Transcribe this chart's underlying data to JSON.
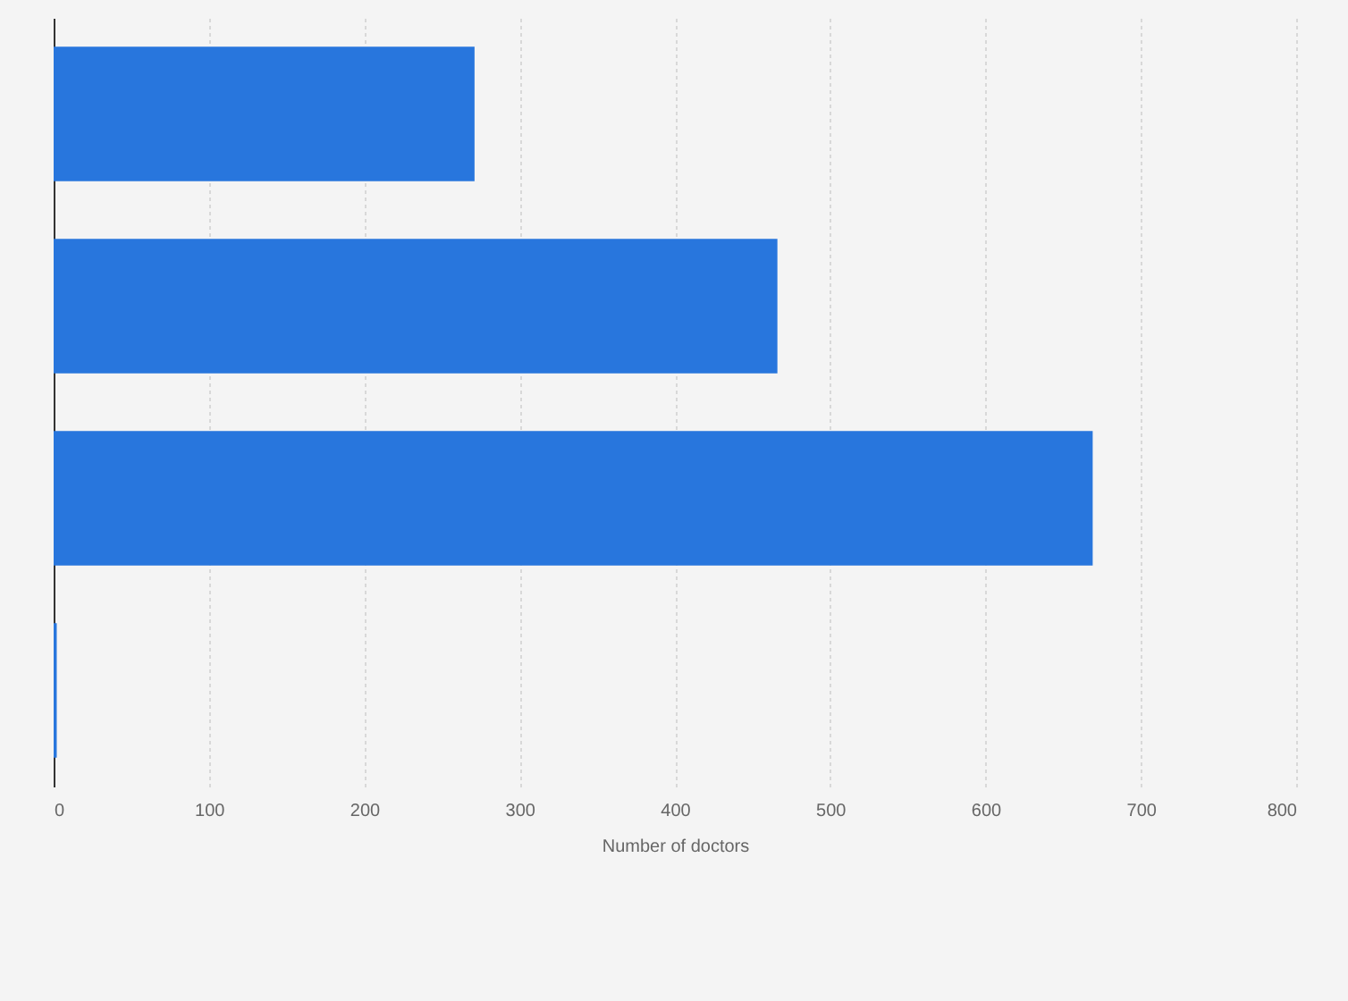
{
  "chart_data": {
    "type": "bar",
    "orientation": "horizontal",
    "xlabel": "Number of doctors",
    "categories": [
      null,
      null,
      null,
      null
    ],
    "values": [
      271,
      466,
      669,
      2
    ],
    "color": "#2876dd",
    "xlim": [
      0,
      800
    ],
    "xticks": [
      0,
      100,
      200,
      300,
      400,
      500,
      600,
      700,
      800
    ],
    "grid": "x"
  }
}
